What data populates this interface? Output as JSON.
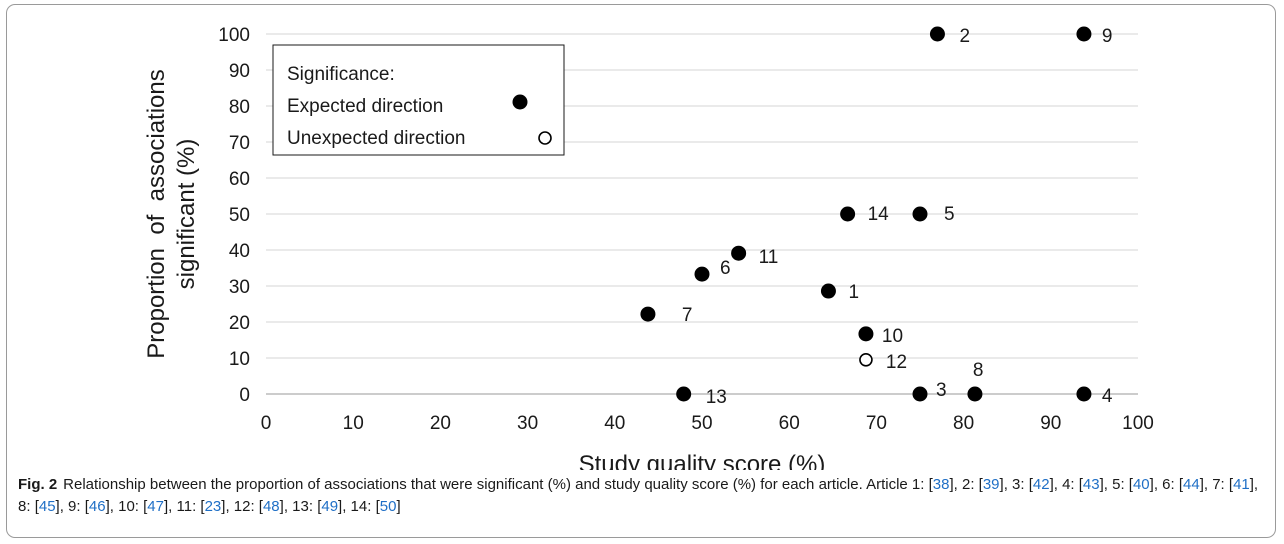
{
  "chart_data": {
    "type": "scatter",
    "xlabel": "Study quality score (%)",
    "ylabel_lines": [
      "Proportion  of  associations",
      "significant (%)"
    ],
    "xlim": [
      0,
      100
    ],
    "ylim": [
      0,
      100
    ],
    "x_ticks": [
      0,
      10,
      20,
      30,
      40,
      50,
      60,
      70,
      80,
      90,
      100
    ],
    "y_ticks": [
      0,
      10,
      20,
      30,
      40,
      50,
      60,
      70,
      80,
      90,
      100
    ],
    "grid": "horizontal",
    "legend": {
      "title": "Significance:",
      "position": "top-left",
      "entries": [
        {
          "label": "Expected direction",
          "marker": "filled"
        },
        {
          "label": "Unexpected direction",
          "marker": "open"
        }
      ]
    },
    "points": [
      {
        "label": "1",
        "x": 64.5,
        "y": 28.6,
        "direction": "expected"
      },
      {
        "label": "2",
        "x": 77.0,
        "y": 100,
        "direction": "expected"
      },
      {
        "label": "3",
        "x": 75.0,
        "y": 0,
        "direction": "expected"
      },
      {
        "label": "4",
        "x": 93.8,
        "y": 0,
        "direction": "expected"
      },
      {
        "label": "5",
        "x": 75.0,
        "y": 50,
        "direction": "expected"
      },
      {
        "label": "6",
        "x": 50.0,
        "y": 33.3,
        "direction": "expected"
      },
      {
        "label": "7",
        "x": 43.8,
        "y": 22.2,
        "direction": "expected"
      },
      {
        "label": "8",
        "x": 81.3,
        "y": 0,
        "direction": "expected"
      },
      {
        "label": "9",
        "x": 93.8,
        "y": 100,
        "direction": "expected"
      },
      {
        "label": "10",
        "x": 68.8,
        "y": 16.7,
        "direction": "expected"
      },
      {
        "label": "11",
        "x": 54.2,
        "y": 39.1,
        "direction": "expected"
      },
      {
        "label": "12",
        "x": 68.8,
        "y": 9.5,
        "direction": "unexpected"
      },
      {
        "label": "13",
        "x": 47.9,
        "y": 0,
        "direction": "expected"
      },
      {
        "label": "14",
        "x": 66.7,
        "y": 50,
        "direction": "expected"
      }
    ]
  },
  "caption": {
    "fig_label": "Fig. 2",
    "text": "Relationship between the proportion of associations that were significant (%) and study quality score (%) for each article. Article 1: ",
    "refs": [
      {
        "article": "1",
        "ref": "38"
      },
      {
        "article": "2",
        "ref": "39"
      },
      {
        "article": "3",
        "ref": "42"
      },
      {
        "article": "4",
        "ref": "43"
      },
      {
        "article": "5",
        "ref": "40"
      },
      {
        "article": "6",
        "ref": "44"
      },
      {
        "article": "7",
        "ref": "41"
      },
      {
        "article": "8",
        "ref": "45"
      },
      {
        "article": "9",
        "ref": "46"
      },
      {
        "article": "10",
        "ref": "47"
      },
      {
        "article": "11",
        "ref": "23"
      },
      {
        "article": "12",
        "ref": "48"
      },
      {
        "article": "13",
        "ref": "49"
      },
      {
        "article": "14",
        "ref": "50"
      }
    ]
  }
}
